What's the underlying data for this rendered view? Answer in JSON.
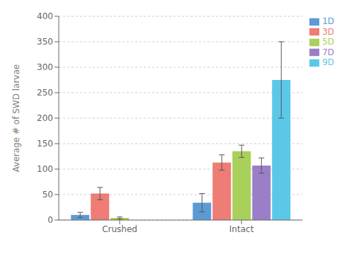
{
  "chart_data": {
    "type": "bar",
    "categories": [
      "Crushed",
      "Intact"
    ],
    "series": [
      {
        "name": "1D",
        "color": "#5B9BD5",
        "values": [
          10,
          34
        ],
        "errors": [
          5,
          18
        ]
      },
      {
        "name": "3D",
        "color": "#ED7D75",
        "values": [
          52,
          113
        ],
        "errors": [
          12,
          15
        ]
      },
      {
        "name": "5D",
        "color": "#A9D05A",
        "values": [
          4,
          135
        ],
        "errors": [
          2,
          12
        ]
      },
      {
        "name": "7D",
        "color": "#9B7EC8",
        "values": [
          0,
          107
        ],
        "errors": [
          0,
          15
        ]
      },
      {
        "name": "9D",
        "color": "#5BC8E8",
        "values": [
          0,
          275
        ],
        "errors": [
          0,
          75
        ]
      }
    ],
    "ylabel": "Average # of SWD larvae",
    "ylim": [
      0,
      400
    ],
    "yticks": [
      0,
      50,
      100,
      150,
      200,
      250,
      300,
      350,
      400
    ],
    "grid": true,
    "legend": "right"
  }
}
